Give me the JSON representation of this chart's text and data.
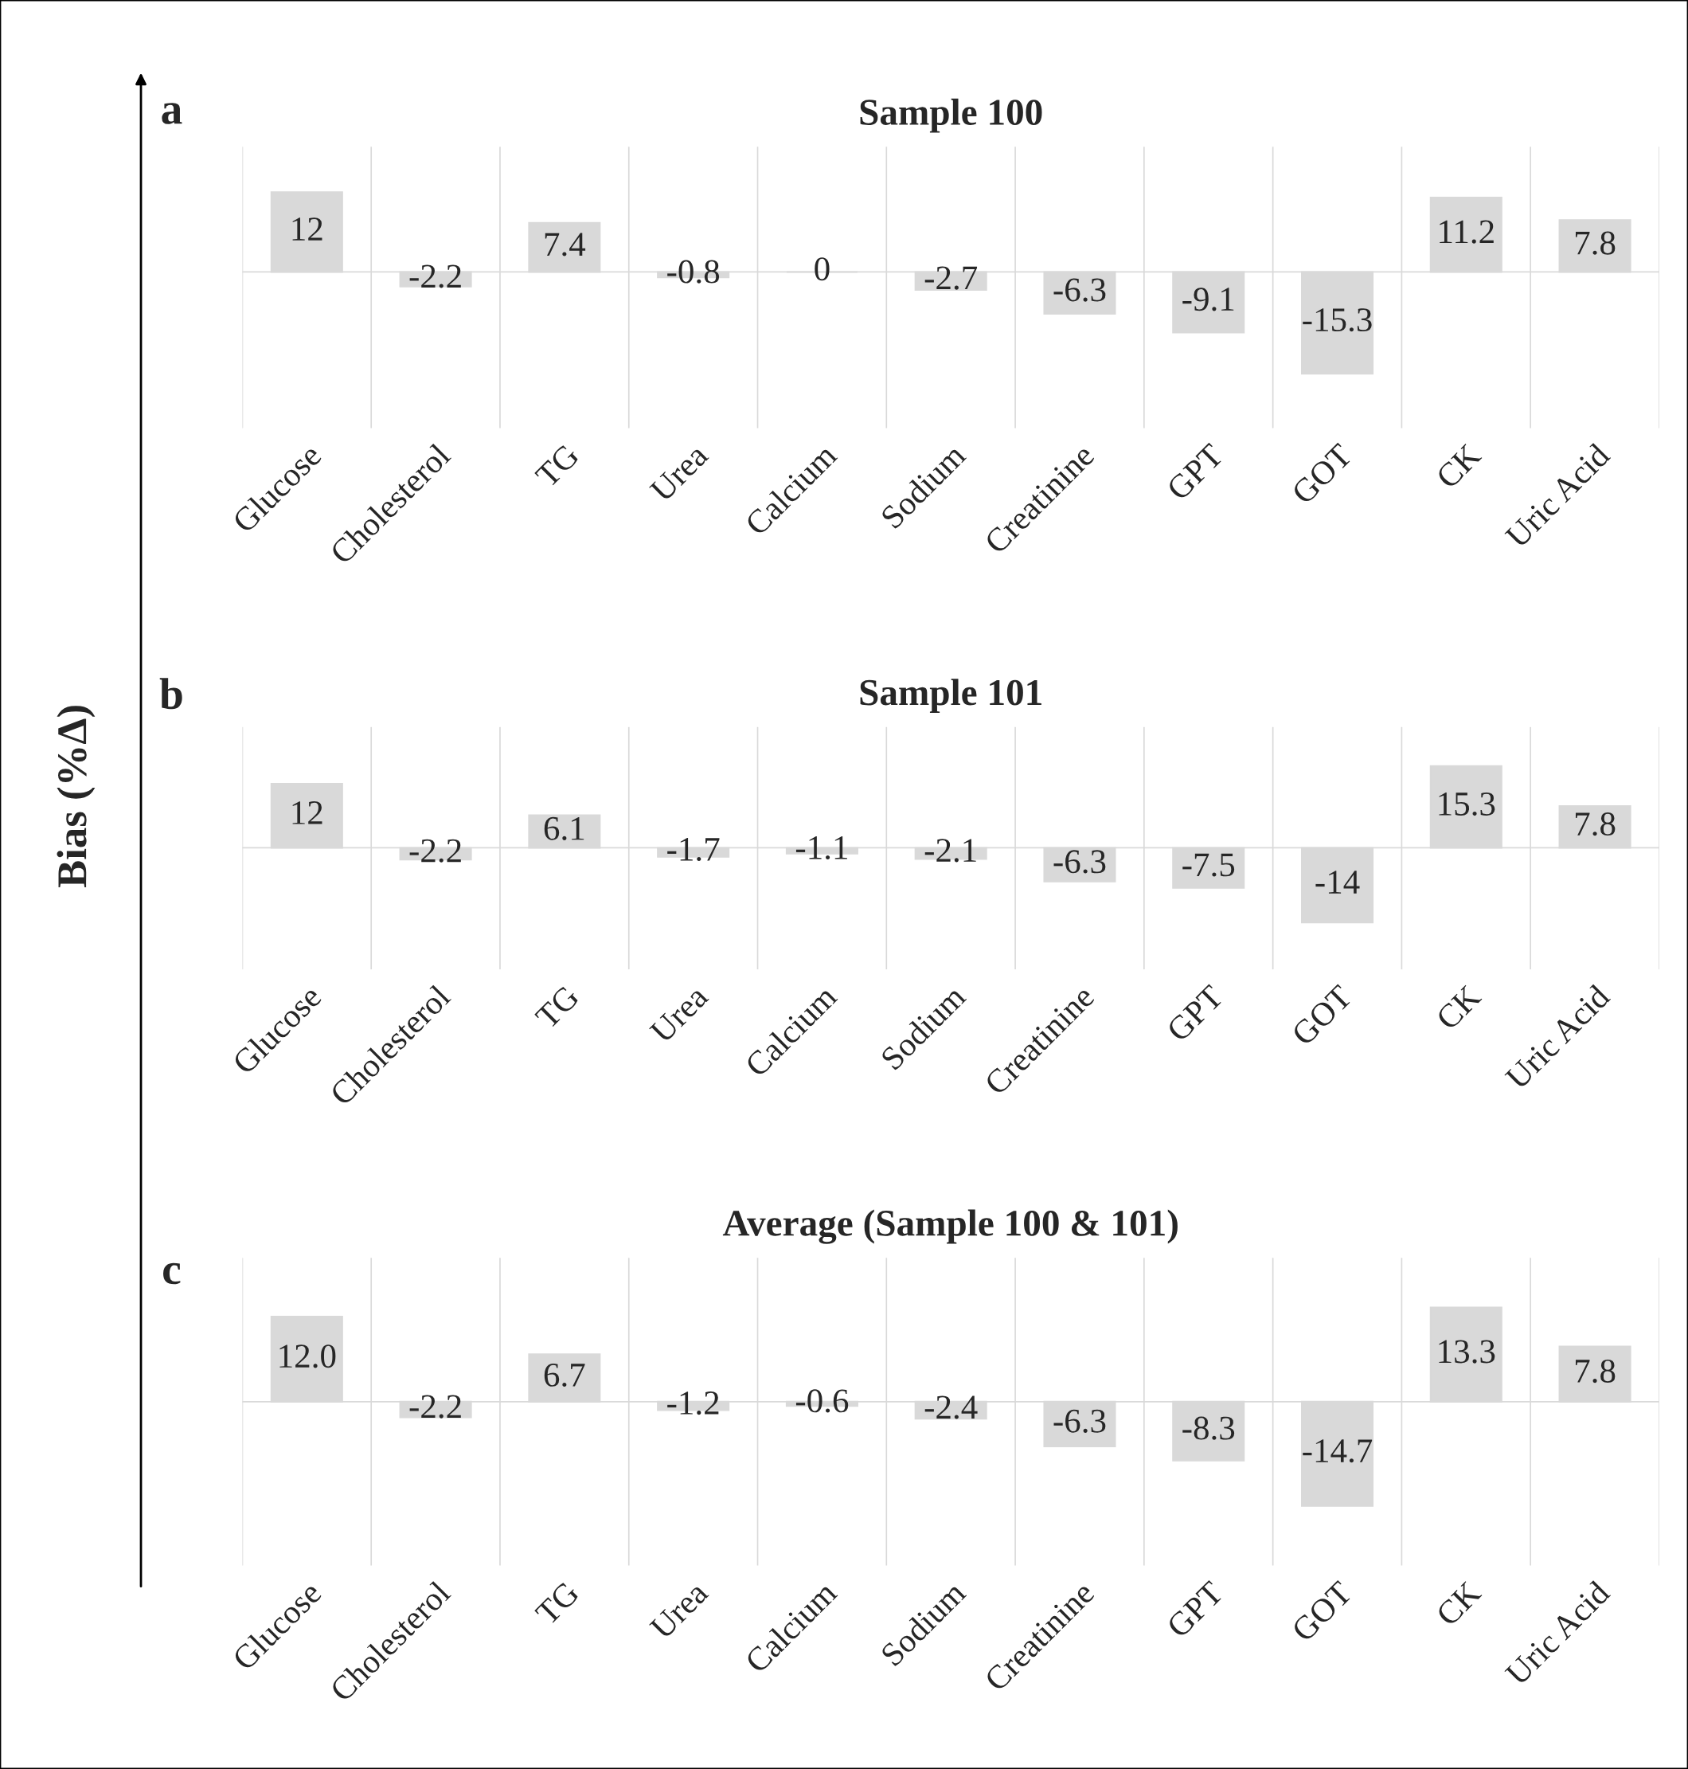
{
  "chart_data": [
    {
      "type": "bar",
      "title": "Sample 100",
      "annotations": [
        "a"
      ],
      "data_labels": true,
      "grid": "x",
      "color": "#d9d9d9",
      "categories": [
        "Glucose",
        "Cholesterol",
        "TG",
        "Urea",
        "Calcium",
        "Sodium",
        "Creatinine",
        "GPT",
        "GOT",
        "CK",
        "Uric Acid"
      ],
      "values": [
        12,
        -2.2,
        7.4,
        -0.8,
        0,
        -2.7,
        -6.3,
        -9.1,
        -15.3,
        11.2,
        7.8
      ]
    },
    {
      "type": "bar",
      "title": "Sample 101",
      "ylabel": "Bias (%Δ)",
      "annotations": [
        "b"
      ],
      "data_labels": true,
      "grid": "x",
      "color": "#d9d9d9",
      "categories": [
        "Glucose",
        "Cholesterol",
        "TG",
        "Urea",
        "Calcium",
        "Sodium",
        "Creatinine",
        "GPT",
        "GOT",
        "CK",
        "Uric Acid"
      ],
      "values": [
        12,
        -2.2,
        6.1,
        -1.7,
        -1.1,
        -2.1,
        -6.3,
        -7.5,
        -14,
        15.3,
        7.8
      ]
    },
    {
      "type": "bar",
      "title": "Average (Sample 100 & 101)",
      "annotations": [
        "c"
      ],
      "data_labels": true,
      "grid": "x",
      "color": "#d9d9d9",
      "categories": [
        "Glucose",
        "Cholesterol",
        "TG",
        "Urea",
        "Calcium",
        "Sodium",
        "Creatinine",
        "GPT",
        "GOT",
        "CK",
        "Uric Acid"
      ],
      "values": [
        12.0,
        -2.2,
        6.7,
        -1.2,
        -0.6,
        -2.4,
        -6.3,
        -8.3,
        -14.7,
        13.3,
        7.8
      ],
      "value_labels": [
        "12.0",
        "-2.2",
        "6.7",
        "-1.2",
        "-0.6",
        "-2.4",
        "-6.3",
        "-8.3",
        "-14.7",
        "13.3",
        "7.8"
      ]
    }
  ]
}
